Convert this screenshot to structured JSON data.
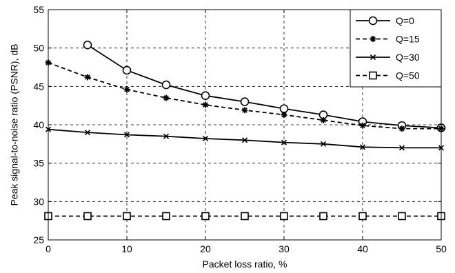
{
  "chart_data": {
    "type": "line",
    "title": "",
    "xlabel": "Packet loss ratio, %",
    "ylabel": "Peak signal-to-noise ratio (PSNR), dB",
    "xlim": [
      0,
      50
    ],
    "ylim": [
      25,
      55
    ],
    "xticks": [
      0,
      10,
      20,
      30,
      40,
      50
    ],
    "yticks": [
      25,
      30,
      35,
      40,
      45,
      50,
      55
    ],
    "grid": "dashed",
    "legend_position": "top-right",
    "series": [
      {
        "name": "Q=0",
        "line": "solid",
        "marker": "circle",
        "x": [
          5,
          10,
          15,
          20,
          25,
          30,
          35,
          40,
          45,
          50
        ],
        "y": [
          50.4,
          47.1,
          45.2,
          43.8,
          43.0,
          42.1,
          41.3,
          40.4,
          39.9,
          39.6
        ]
      },
      {
        "name": "Q=15",
        "line": "dashed",
        "marker": "star",
        "x": [
          0,
          5,
          10,
          15,
          20,
          25,
          30,
          35,
          40,
          45,
          50
        ],
        "y": [
          48.1,
          46.2,
          44.6,
          43.5,
          42.6,
          41.9,
          41.3,
          40.6,
          39.9,
          39.5,
          39.5
        ]
      },
      {
        "name": "Q=30",
        "line": "solid",
        "marker": "x",
        "x": [
          0,
          5,
          10,
          15,
          20,
          25,
          30,
          35,
          40,
          45,
          50
        ],
        "y": [
          39.4,
          39.0,
          38.7,
          38.5,
          38.2,
          38.0,
          37.7,
          37.5,
          37.1,
          37.0,
          37.0
        ]
      },
      {
        "name": "Q=50",
        "line": "dashed",
        "marker": "square",
        "x": [
          0,
          5,
          10,
          15,
          20,
          25,
          30,
          35,
          40,
          45,
          50
        ],
        "y": [
          28.1,
          28.1,
          28.1,
          28.1,
          28.1,
          28.1,
          28.1,
          28.1,
          28.1,
          28.1,
          28.1
        ]
      }
    ]
  }
}
